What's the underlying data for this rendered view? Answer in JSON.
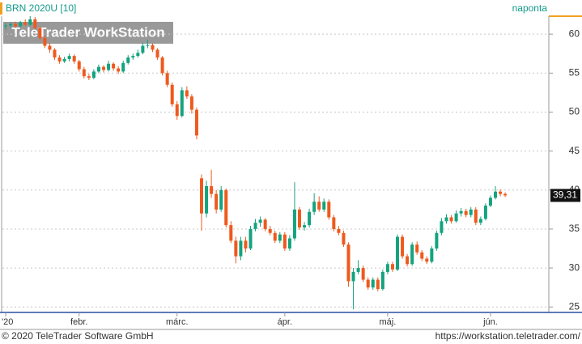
{
  "chart_data": {
    "type": "candlestick",
    "title": "BRN 2020U [10]",
    "period": "naponta",
    "watermark": "TeleTrader WorkStation",
    "copyright": "© 2020 TeleTrader Software GmbH",
    "url": "https://workstation.teletrader.com/",
    "ylim": [
      24.3,
      62.3
    ],
    "yticks": [
      25,
      30,
      35,
      40,
      45,
      50,
      55,
      60
    ],
    "grid": true,
    "up_color": "#13a37f",
    "down_color": "#ee5a1e",
    "last": {
      "value": 39.31,
      "label": "39,31"
    },
    "xticks": [
      {
        "value": 0,
        "label": "'20"
      },
      {
        "value": 15,
        "label": "febr."
      },
      {
        "value": 35,
        "label": "márc."
      },
      {
        "value": 57,
        "label": "ápr."
      },
      {
        "value": 78,
        "label": "máj."
      },
      {
        "value": 99,
        "label": "jún."
      }
    ],
    "candles": [
      [
        61.0,
        61.4,
        60.6,
        61.1
      ],
      [
        61.1,
        61.5,
        60.8,
        61.3
      ],
      [
        61.3,
        61.6,
        60.8,
        61.0
      ],
      [
        61.0,
        61.7,
        60.9,
        61.5
      ],
      [
        61.5,
        61.9,
        61.0,
        61.2
      ],
      [
        61.2,
        62.3,
        61.0,
        61.9
      ],
      [
        61.9,
        62.2,
        60.6,
        60.8
      ],
      [
        60.8,
        61.0,
        59.2,
        59.5
      ],
      [
        59.5,
        59.8,
        58.2,
        58.5
      ],
      [
        58.5,
        58.9,
        57.6,
        58.0
      ],
      [
        58.0,
        58.2,
        56.7,
        57.0
      ],
      [
        57.0,
        57.3,
        56.2,
        56.5
      ],
      [
        56.5,
        57.1,
        56.3,
        56.8
      ],
      [
        56.8,
        57.5,
        56.5,
        57.2
      ],
      [
        57.2,
        57.4,
        56.2,
        56.5
      ],
      [
        56.5,
        56.7,
        55.2,
        55.5
      ],
      [
        55.5,
        55.8,
        54.3,
        54.6
      ],
      [
        54.6,
        54.9,
        54.1,
        54.4
      ],
      [
        54.4,
        55.5,
        54.2,
        55.2
      ],
      [
        55.2,
        56.1,
        55.0,
        55.8
      ],
      [
        55.8,
        56.0,
        55.1,
        55.4
      ],
      [
        55.4,
        56.6,
        55.2,
        56.2
      ],
      [
        56.2,
        56.4,
        55.3,
        55.6
      ],
      [
        55.6,
        55.9,
        54.9,
        55.2
      ],
      [
        55.2,
        56.6,
        55.0,
        56.3
      ],
      [
        56.3,
        57.3,
        56.1,
        57.0
      ],
      [
        57.0,
        57.5,
        56.7,
        57.2
      ],
      [
        57.2,
        58.0,
        57.0,
        57.6
      ],
      [
        57.6,
        58.9,
        57.4,
        58.5
      ],
      [
        58.5,
        59.3,
        58.2,
        58.6
      ],
      [
        58.6,
        58.8,
        57.7,
        58.0
      ],
      [
        58.0,
        58.2,
        56.7,
        57.0
      ],
      [
        57.0,
        57.2,
        54.7,
        55.0
      ],
      [
        55.0,
        55.3,
        53.2,
        53.5
      ],
      [
        53.5,
        53.8,
        50.7,
        51.0
      ],
      [
        51.0,
        51.4,
        49.0,
        49.5
      ],
      [
        49.5,
        53.2,
        49.3,
        52.8
      ],
      [
        52.8,
        53.3,
        51.7,
        52.0
      ],
      [
        52.0,
        52.3,
        49.8,
        50.3
      ],
      [
        50.3,
        50.6,
        46.5,
        47.0
      ],
      [
        41.5,
        42.0,
        34.8,
        37.0
      ],
      [
        37.0,
        41.2,
        36.5,
        40.5
      ],
      [
        40.5,
        42.6,
        39.0,
        39.5
      ],
      [
        39.5,
        40.0,
        37.0,
        37.5
      ],
      [
        37.5,
        40.5,
        37.2,
        40.0
      ],
      [
        40.0,
        40.2,
        35.2,
        35.5
      ],
      [
        35.5,
        36.0,
        33.2,
        33.5
      ],
      [
        33.5,
        34.0,
        30.6,
        31.5
      ],
      [
        31.5,
        34.0,
        31.0,
        33.5
      ],
      [
        33.5,
        34.0,
        32.0,
        32.5
      ],
      [
        32.5,
        35.4,
        32.3,
        35.0
      ],
      [
        35.0,
        36.3,
        34.7,
        35.8
      ],
      [
        35.8,
        36.6,
        35.3,
        36.2
      ],
      [
        36.2,
        36.4,
        34.7,
        35.0
      ],
      [
        35.0,
        35.4,
        34.2,
        34.5
      ],
      [
        34.5,
        34.8,
        33.2,
        33.5
      ],
      [
        33.5,
        34.6,
        33.2,
        34.3
      ],
      [
        34.3,
        34.6,
        32.2,
        32.5
      ],
      [
        32.5,
        34.2,
        32.2,
        33.8
      ],
      [
        33.8,
        41.0,
        33.5,
        37.5
      ],
      [
        37.5,
        37.8,
        34.9,
        35.2
      ],
      [
        35.2,
        35.9,
        34.8,
        35.5
      ],
      [
        35.5,
        37.6,
        35.2,
        37.2
      ],
      [
        37.2,
        39.6,
        36.8,
        38.5
      ],
      [
        38.5,
        39.2,
        37.2,
        37.5
      ],
      [
        37.5,
        38.9,
        37.2,
        38.5
      ],
      [
        38.5,
        38.8,
        36.2,
        36.5
      ],
      [
        36.5,
        36.8,
        34.7,
        35.0
      ],
      [
        35.0,
        35.4,
        34.2,
        34.5
      ],
      [
        34.5,
        34.8,
        32.7,
        33.0
      ],
      [
        33.0,
        33.3,
        27.6,
        28.3
      ],
      [
        28.3,
        30.0,
        24.7,
        29.5
      ],
      [
        29.5,
        31.0,
        29.2,
        30.0
      ],
      [
        30.0,
        30.3,
        28.2,
        28.5
      ],
      [
        28.5,
        28.8,
        27.2,
        27.5
      ],
      [
        27.5,
        28.8,
        27.2,
        28.5
      ],
      [
        28.5,
        28.8,
        27.0,
        27.3
      ],
      [
        27.3,
        29.8,
        27.1,
        29.5
      ],
      [
        29.5,
        30.8,
        29.2,
        30.5
      ],
      [
        30.5,
        30.8,
        29.5,
        29.8
      ],
      [
        29.8,
        34.3,
        29.6,
        34.0
      ],
      [
        34.0,
        34.3,
        31.2,
        31.5
      ],
      [
        31.5,
        31.8,
        30.2,
        30.5
      ],
      [
        30.5,
        33.3,
        30.3,
        33.0
      ],
      [
        33.0,
        33.4,
        31.7,
        32.0
      ],
      [
        32.0,
        32.3,
        30.9,
        31.2
      ],
      [
        31.2,
        31.5,
        30.5,
        30.8
      ],
      [
        30.8,
        32.8,
        30.6,
        32.5
      ],
      [
        32.5,
        34.8,
        32.2,
        34.5
      ],
      [
        34.5,
        36.4,
        34.2,
        36.0
      ],
      [
        36.0,
        36.9,
        35.7,
        36.5
      ],
      [
        36.5,
        36.8,
        35.7,
        36.0
      ],
      [
        36.0,
        37.4,
        35.8,
        37.0
      ],
      [
        37.0,
        37.7,
        36.6,
        37.3
      ],
      [
        37.3,
        37.6,
        36.5,
        36.8
      ],
      [
        36.8,
        37.8,
        36.5,
        37.5
      ],
      [
        37.5,
        37.8,
        35.5,
        35.8
      ],
      [
        35.8,
        36.6,
        35.5,
        36.3
      ],
      [
        36.3,
        38.3,
        36.1,
        38.0
      ],
      [
        38.0,
        39.3,
        37.8,
        39.0
      ],
      [
        39.0,
        40.5,
        38.8,
        39.8
      ],
      [
        39.8,
        40.1,
        39.2,
        39.5
      ],
      [
        39.5,
        39.7,
        39.1,
        39.31
      ]
    ]
  }
}
